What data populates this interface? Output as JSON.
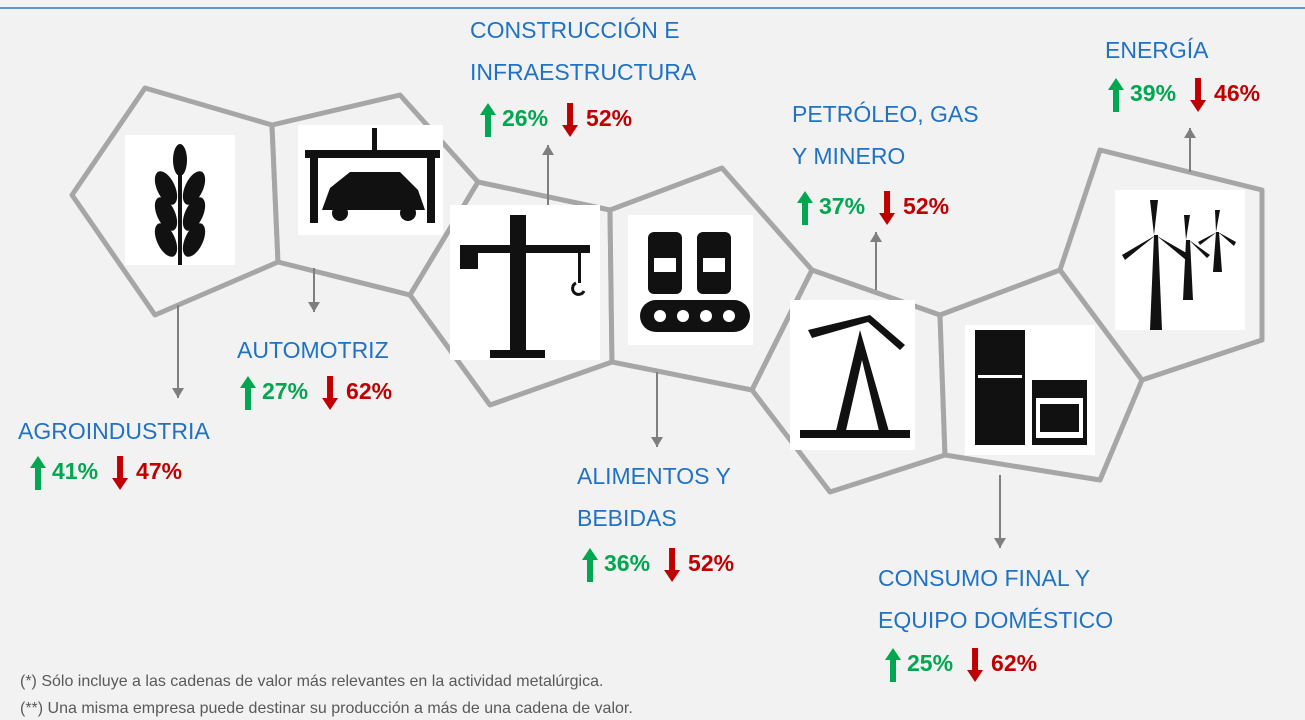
{
  "nodes": [
    {
      "label": [
        "AGROINDUSTRIA"
      ],
      "up": "41%",
      "down": "47%"
    },
    {
      "label": [
        "AUTOMOTRIZ"
      ],
      "up": "27%",
      "down": "62%"
    },
    {
      "label": [
        "CONSTRUCCIÓN E",
        "INFRAESTRUCTURA"
      ],
      "up": "26%",
      "down": "52%"
    },
    {
      "label": [
        "ALIMENTOS Y",
        "BEBIDAS"
      ],
      "up": "36%",
      "down": "52%"
    },
    {
      "label": [
        "PETRÓLEO, GAS",
        "Y MINERO"
      ],
      "up": "37%",
      "down": "52%"
    },
    {
      "label": [
        "CONSUMO FINAL Y",
        "EQUIPO DOMÉSTICO"
      ],
      "up": "25%",
      "down": "62%"
    },
    {
      "label": [
        "ENERGÍA"
      ],
      "up": "39%",
      "down": "46%"
    }
  ],
  "footnotes": [
    "(*) Sólo incluye a las cadenas de valor más relevantes en la actividad metalúrgica.",
    "(**) Una misma empresa puede destinar su producción a más de una cadena de valor."
  ]
}
